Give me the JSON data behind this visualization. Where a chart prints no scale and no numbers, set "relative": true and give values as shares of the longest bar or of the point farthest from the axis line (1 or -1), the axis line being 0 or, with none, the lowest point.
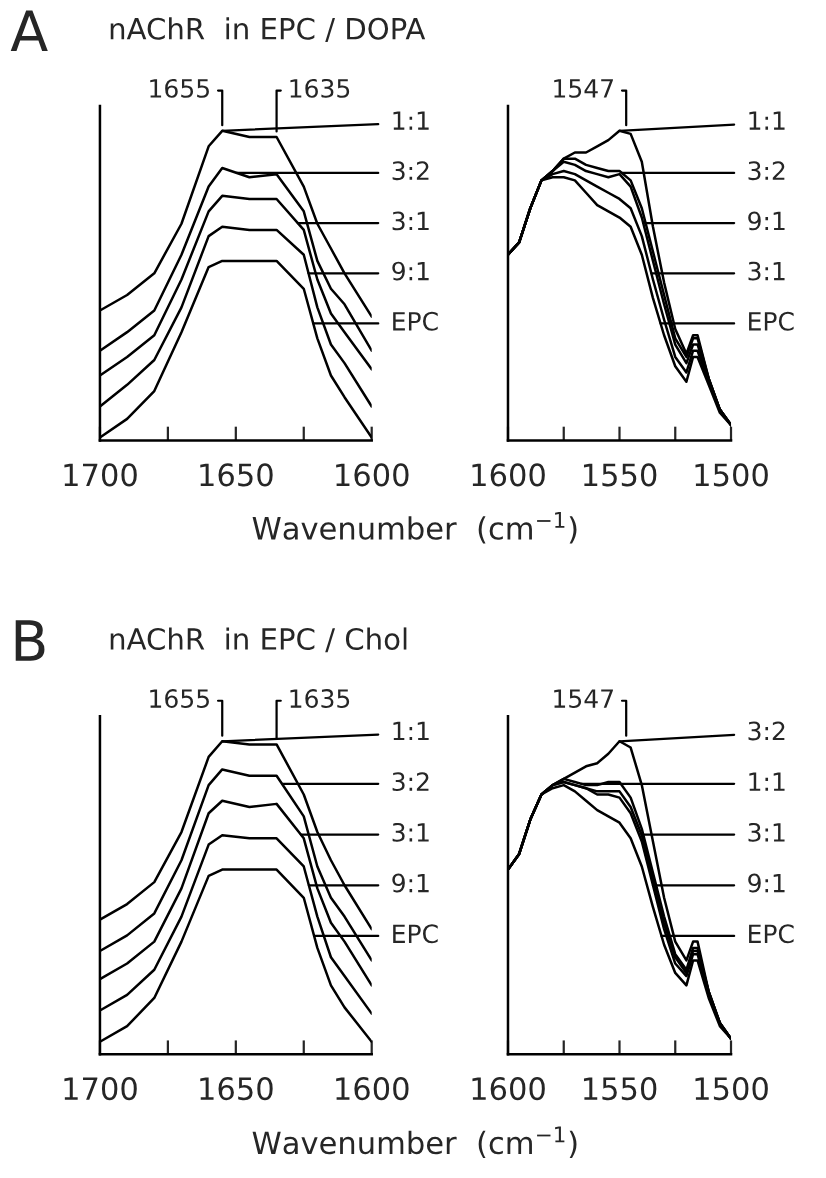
{
  "chart_data": [
    {
      "type": "line",
      "relative": true,
      "title": "nAChR  in EPC / DOPA",
      "annotations": [
        "A",
        {
          "text": "1655",
          "x": 1655,
          "y": 1.0
        },
        {
          "text": "1635",
          "x": 1635,
          "y": 0.98
        }
      ],
      "xlabel": "Wavenumber  (cm$^{−1}$)",
      "xlim": [
        1700,
        1600
      ],
      "xticks": [
        1700,
        {
          "value": 1675,
          "label": null
        },
        1650,
        {
          "value": 1625,
          "label": null
        },
        1600
      ],
      "grid": false,
      "legend": "right",
      "x": [
        1700,
        1690,
        1680,
        1670,
        1660,
        1655,
        1645,
        1635,
        1625,
        1620,
        1615,
        1610,
        1600
      ],
      "series": [
        {
          "name": "1:1",
          "color": "#000000",
          "values": [
            0.42,
            0.47,
            0.54,
            0.7,
            0.95,
            1.0,
            0.98,
            0.98,
            0.82,
            0.7,
            0.62,
            0.54,
            0.4
          ]
        },
        {
          "name": "3:2",
          "color": "#000000",
          "values": [
            0.29,
            0.35,
            0.42,
            0.6,
            0.82,
            0.88,
            0.85,
            0.86,
            0.74,
            0.58,
            0.49,
            0.44,
            0.29
          ]
        },
        {
          "name": "3:1",
          "color": "#000000",
          "values": [
            0.21,
            0.27,
            0.34,
            0.52,
            0.74,
            0.79,
            0.78,
            0.78,
            0.68,
            0.52,
            0.41,
            0.35,
            0.23
          ]
        },
        {
          "name": "9:1",
          "color": "#000000",
          "values": [
            0.11,
            0.18,
            0.26,
            0.43,
            0.66,
            0.69,
            0.68,
            0.68,
            0.6,
            0.43,
            0.31,
            0.25,
            0.11
          ]
        },
        {
          "name": "EPC",
          "color": "#000000",
          "values": [
            0.01,
            0.07,
            0.16,
            0.35,
            0.56,
            0.58,
            0.58,
            0.58,
            0.49,
            0.33,
            0.21,
            0.14,
            0.01
          ]
        }
      ]
    },
    {
      "type": "line",
      "relative": true,
      "annotations": [
        {
          "text": "1547",
          "x": 1547,
          "y": 1.0
        }
      ],
      "xlim": [
        1600,
        1500
      ],
      "xticks": [
        1600,
        {
          "value": 1575,
          "label": null
        },
        1550,
        {
          "value": 1525,
          "label": null
        },
        1500
      ],
      "grid": false,
      "legend": "right",
      "x": [
        1600,
        1595,
        1590,
        1585,
        1580,
        1575,
        1570,
        1565,
        1560,
        1555,
        1550,
        1545,
        1540,
        1535,
        1530,
        1525,
        1520,
        1517,
        1515,
        1510,
        1505,
        1500
      ],
      "series": [
        {
          "name": "1:1",
          "color": "#000000",
          "values": [
            0.6,
            0.64,
            0.75,
            0.84,
            0.87,
            0.91,
            0.93,
            0.93,
            0.95,
            0.97,
            1.0,
            0.99,
            0.9,
            0.69,
            0.51,
            0.36,
            0.28,
            0.34,
            0.34,
            0.2,
            0.1,
            0.05
          ]
        },
        {
          "name": "3:2",
          "color": "#000000",
          "values": [
            0.6,
            0.64,
            0.75,
            0.84,
            0.87,
            0.91,
            0.91,
            0.89,
            0.88,
            0.87,
            0.87,
            0.84,
            0.75,
            0.61,
            0.47,
            0.33,
            0.27,
            0.33,
            0.33,
            0.2,
            0.1,
            0.05
          ]
        },
        {
          "name": "9:1",
          "color": "#000000",
          "values": [
            0.6,
            0.64,
            0.75,
            0.84,
            0.87,
            0.9,
            0.89,
            0.87,
            0.86,
            0.85,
            0.86,
            0.82,
            0.72,
            0.58,
            0.44,
            0.31,
            0.25,
            0.31,
            0.31,
            0.2,
            0.1,
            0.05
          ]
        },
        {
          "name": "3:1",
          "color": "#000000",
          "values": [
            0.6,
            0.64,
            0.75,
            0.84,
            0.86,
            0.87,
            0.86,
            0.84,
            0.82,
            0.8,
            0.78,
            0.75,
            0.66,
            0.52,
            0.39,
            0.27,
            0.22,
            0.29,
            0.29,
            0.19,
            0.1,
            0.05
          ]
        },
        {
          "name": "EPC",
          "color": "#000000",
          "values": [
            0.6,
            0.64,
            0.75,
            0.84,
            0.85,
            0.85,
            0.84,
            0.8,
            0.76,
            0.74,
            0.72,
            0.69,
            0.6,
            0.46,
            0.34,
            0.24,
            0.19,
            0.27,
            0.27,
            0.18,
            0.09,
            0.05
          ]
        }
      ]
    },
    {
      "type": "line",
      "relative": true,
      "title": "nAChR  in EPC / Chol",
      "annotations": [
        "B",
        {
          "text": "1655",
          "x": 1655,
          "y": 1.0
        },
        {
          "text": "1635",
          "x": 1635,
          "y": 0.99
        }
      ],
      "xlabel": "Wavenumber  (cm$^{−1}$)",
      "xlim": [
        1700,
        1600
      ],
      "xticks": [
        1700,
        {
          "value": 1675,
          "label": null
        },
        1650,
        {
          "value": 1625,
          "label": null
        },
        1600
      ],
      "grid": false,
      "legend": "right",
      "x": [
        1700,
        1690,
        1680,
        1670,
        1660,
        1655,
        1645,
        1635,
        1625,
        1620,
        1615,
        1610,
        1600
      ],
      "series": [
        {
          "name": "1:1",
          "color": "#000000",
          "values": [
            0.43,
            0.48,
            0.55,
            0.71,
            0.95,
            1.0,
            0.99,
            0.99,
            0.83,
            0.71,
            0.62,
            0.54,
            0.4
          ]
        },
        {
          "name": "3:2",
          "color": "#000000",
          "values": [
            0.33,
            0.38,
            0.45,
            0.62,
            0.86,
            0.91,
            0.89,
            0.89,
            0.76,
            0.6,
            0.5,
            0.44,
            0.3
          ]
        },
        {
          "name": "3:1",
          "color": "#000000",
          "values": [
            0.24,
            0.29,
            0.36,
            0.53,
            0.77,
            0.81,
            0.79,
            0.8,
            0.69,
            0.53,
            0.42,
            0.36,
            0.22
          ]
        },
        {
          "name": "9:1",
          "color": "#000000",
          "values": [
            0.14,
            0.19,
            0.27,
            0.44,
            0.67,
            0.7,
            0.69,
            0.69,
            0.6,
            0.44,
            0.31,
            0.25,
            0.13
          ]
        },
        {
          "name": "EPC",
          "color": "#000000",
          "values": [
            0.04,
            0.09,
            0.18,
            0.36,
            0.57,
            0.59,
            0.59,
            0.59,
            0.5,
            0.34,
            0.22,
            0.15,
            0.04
          ]
        }
      ]
    },
    {
      "type": "line",
      "relative": true,
      "annotations": [
        {
          "text": "1547",
          "x": 1547,
          "y": 1.0
        }
      ],
      "xlim": [
        1600,
        1500
      ],
      "xticks": [
        1600,
        {
          "value": 1575,
          "label": null
        },
        1550,
        {
          "value": 1525,
          "label": null
        },
        1500
      ],
      "grid": false,
      "legend": "right",
      "x": [
        1600,
        1595,
        1590,
        1585,
        1580,
        1575,
        1570,
        1565,
        1560,
        1555,
        1550,
        1545,
        1540,
        1535,
        1530,
        1525,
        1520,
        1517,
        1515,
        1510,
        1505,
        1500
      ],
      "series": [
        {
          "name": "3:2",
          "color": "#000000",
          "values": [
            0.59,
            0.64,
            0.75,
            0.83,
            0.86,
            0.88,
            0.9,
            0.92,
            0.93,
            0.96,
            1.0,
            0.98,
            0.86,
            0.68,
            0.5,
            0.36,
            0.3,
            0.36,
            0.36,
            0.2,
            0.1,
            0.05
          ]
        },
        {
          "name": "1:1",
          "color": "#000000",
          "values": [
            0.59,
            0.64,
            0.75,
            0.83,
            0.86,
            0.88,
            0.87,
            0.86,
            0.86,
            0.87,
            0.87,
            0.82,
            0.72,
            0.58,
            0.44,
            0.32,
            0.27,
            0.34,
            0.34,
            0.2,
            0.1,
            0.05
          ]
        },
        {
          "name": "3:1",
          "color": "#000000",
          "values": [
            0.59,
            0.64,
            0.75,
            0.83,
            0.86,
            0.87,
            0.86,
            0.85,
            0.84,
            0.84,
            0.84,
            0.79,
            0.7,
            0.56,
            0.42,
            0.31,
            0.26,
            0.33,
            0.33,
            0.2,
            0.1,
            0.05
          ]
        },
        {
          "name": "9:1",
          "color": "#000000",
          "values": [
            0.59,
            0.64,
            0.75,
            0.83,
            0.86,
            0.87,
            0.86,
            0.85,
            0.83,
            0.83,
            0.82,
            0.77,
            0.68,
            0.54,
            0.4,
            0.29,
            0.25,
            0.32,
            0.32,
            0.19,
            0.1,
            0.05
          ]
        },
        {
          "name": "EPC",
          "color": "#000000",
          "values": [
            0.59,
            0.64,
            0.75,
            0.83,
            0.85,
            0.86,
            0.84,
            0.81,
            0.78,
            0.76,
            0.74,
            0.69,
            0.6,
            0.47,
            0.35,
            0.26,
            0.22,
            0.3,
            0.3,
            0.18,
            0.09,
            0.05
          ]
        }
      ]
    }
  ]
}
